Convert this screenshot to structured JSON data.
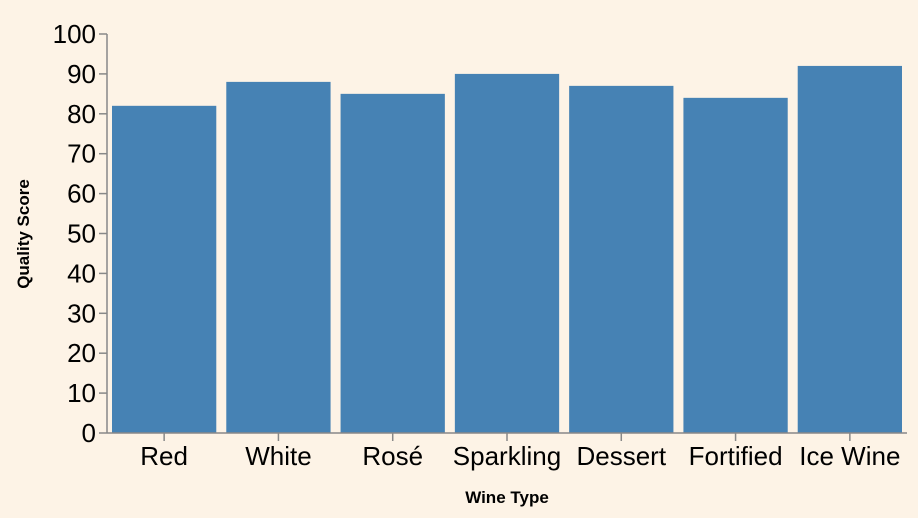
{
  "chart_data": {
    "type": "bar",
    "categories": [
      "Red",
      "White",
      "Rosé",
      "Sparkling",
      "Dessert",
      "Fortified",
      "Ice Wine"
    ],
    "values": [
      82,
      88,
      85,
      90,
      87,
      84,
      92
    ],
    "xlabel": "Wine Type",
    "ylabel": "Quality Score",
    "ylim": [
      0,
      100
    ],
    "yticks": [
      0,
      10,
      20,
      30,
      40,
      50,
      60,
      70,
      80,
      90,
      100
    ],
    "grid": false,
    "bar_color": "#4682b4",
    "background_color": "#fdf3e6"
  }
}
